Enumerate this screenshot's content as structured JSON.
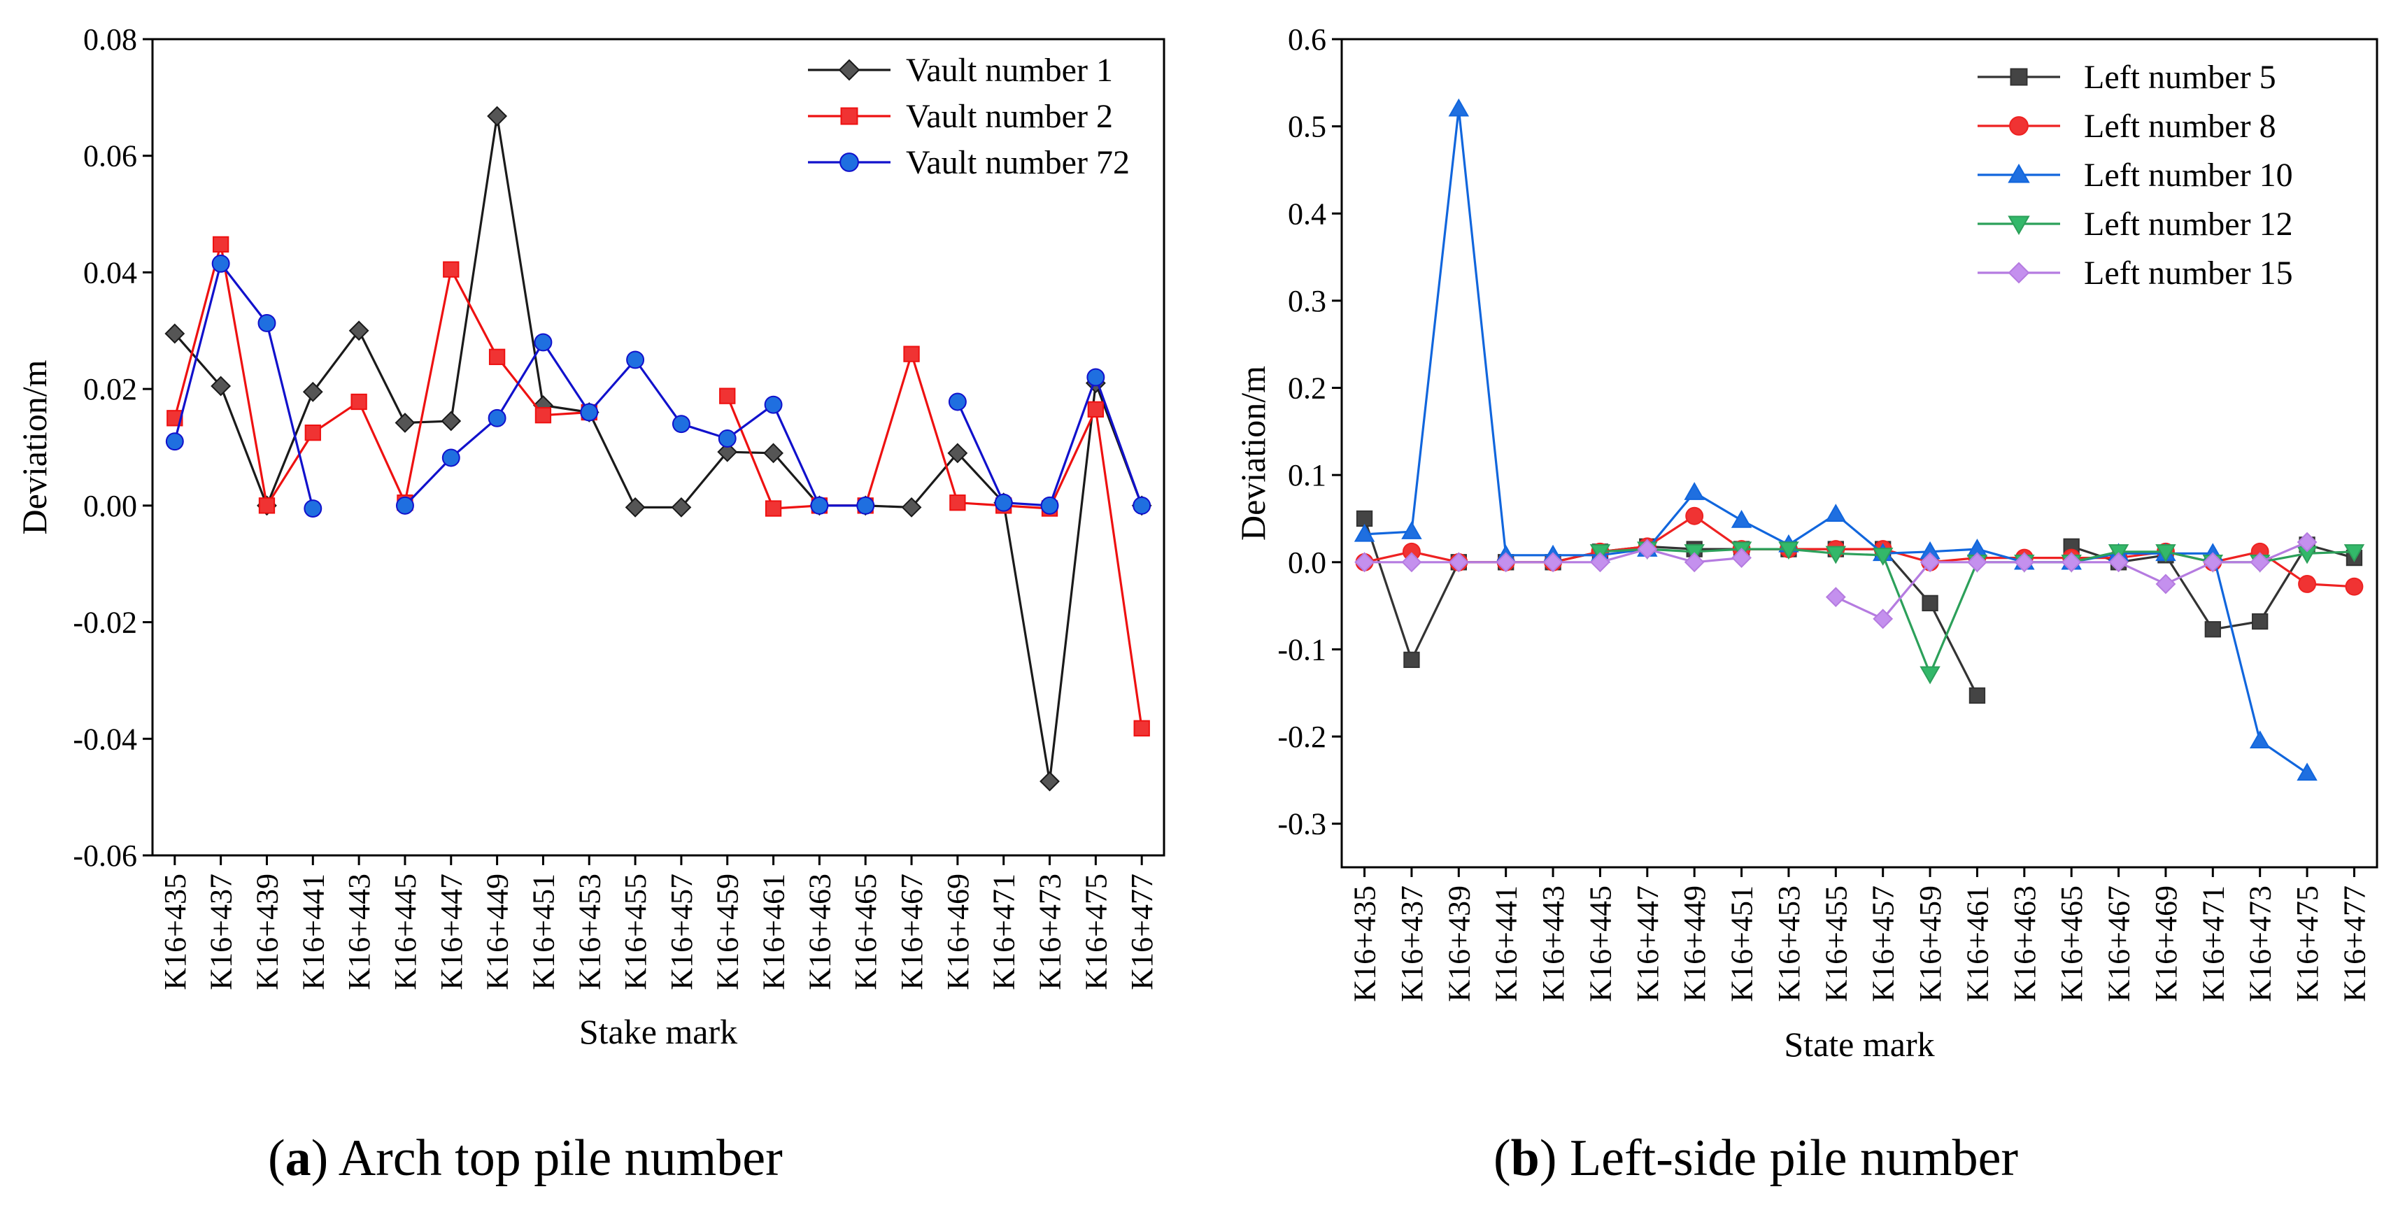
{
  "chart_data": [
    {
      "type": "line",
      "caption": {
        "letter": "a",
        "text": "Arch top pile number"
      },
      "xlabel": "Stake mark",
      "ylabel": "Deviation/m",
      "ylim": [
        -0.06,
        0.08
      ],
      "yticks": [
        "-0.06",
        "-0.04",
        "-0.02",
        "0.00",
        "0.02",
        "0.04",
        "0.06",
        "0.08"
      ],
      "categories": [
        "K16+435",
        "K16+437",
        "K16+439",
        "K16+441",
        "K16+443",
        "K16+445",
        "K16+447",
        "K16+449",
        "K16+451",
        "K16+453",
        "K16+455",
        "K16+457",
        "K16+459",
        "K16+461",
        "K16+463",
        "K16+465",
        "K16+467",
        "K16+469",
        "K16+471",
        "K16+473",
        "K16+475",
        "K16+477"
      ],
      "legend_position": "top-right",
      "series": [
        {
          "name": "Vault number 1",
          "color": "#1a1a1a",
          "fill": "#555555",
          "marker": "diamond",
          "values": [
            0.0295,
            0.0205,
            0.0,
            0.0195,
            0.03,
            0.0142,
            0.0145,
            0.0668,
            0.0172,
            0.016,
            -0.0003,
            -0.0003,
            0.0092,
            0.009,
            0.0,
            0.0,
            -0.0003,
            0.009,
            0.0005,
            -0.0473,
            0.021,
            0.0
          ]
        },
        {
          "name": "Vault number 2",
          "color": "#ee1111",
          "fill": "#f03333",
          "marker": "square",
          "values": [
            0.015,
            0.0448,
            0.0,
            0.0125,
            0.0178,
            0.0005,
            0.0405,
            0.0255,
            0.0155,
            0.016,
            null,
            null,
            0.0188,
            -0.0005,
            0.0,
            0.0,
            0.026,
            0.0005,
            0.0,
            -0.0005,
            0.0165,
            -0.0382
          ]
        },
        {
          "name": "Vault number 72",
          "color": "#1111cc",
          "fill": "#1f6fe0",
          "marker": "circle",
          "values": [
            0.011,
            0.0415,
            0.0313,
            -0.0005,
            null,
            0.0,
            0.0082,
            0.015,
            0.028,
            0.016,
            0.025,
            0.014,
            0.0115,
            0.0173,
            0.0,
            0.0,
            null,
            0.0178,
            0.0005,
            0.0,
            0.022,
            0.0
          ]
        }
      ]
    },
    {
      "type": "line",
      "caption": {
        "letter": "b",
        "text": "Left-side pile number"
      },
      "xlabel": "State mark",
      "ylabel": "Deviation/m",
      "ylim": [
        -0.35,
        0.6
      ],
      "yticks": [
        "-0.3",
        "-0.2",
        "-0.1",
        "0.0",
        "0.1",
        "0.2",
        "0.3",
        "0.4",
        "0.5",
        "0.6"
      ],
      "categories": [
        "K16+435",
        "K16+437",
        "K16+439",
        "K16+441",
        "K16+443",
        "K16+445",
        "K16+447",
        "K16+449",
        "K16+451",
        "K16+453",
        "K16+455",
        "K16+457",
        "K16+459",
        "K16+461",
        "K16+463",
        "K16+465",
        "K16+467",
        "K16+469",
        "K16+471",
        "K16+473",
        "K16+475",
        "K16+477"
      ],
      "legend_position": "top-right",
      "series": [
        {
          "name": "Left number 5",
          "color": "#333333",
          "fill": "#444444",
          "marker": "square",
          "values": [
            0.05,
            -0.112,
            0.0,
            0.0,
            0.0,
            0.012,
            0.018,
            0.015,
            0.015,
            0.015,
            0.015,
            0.015,
            -0.047,
            -0.153,
            null,
            0.018,
            0.0,
            0.008,
            -0.077,
            -0.068,
            0.02,
            0.005
          ]
        },
        {
          "name": "Left number 8",
          "color": "#ee2222",
          "fill": "#f03333",
          "marker": "circle",
          "values": [
            0.0,
            0.012,
            0.0,
            0.0,
            0.0,
            0.012,
            0.018,
            0.053,
            0.015,
            0.015,
            0.015,
            0.015,
            0.0,
            0.005,
            0.005,
            0.005,
            0.005,
            0.012,
            0.0,
            0.012,
            -0.025,
            -0.028
          ]
        },
        {
          "name": "Left number 10",
          "color": "#1166dd",
          "fill": "#1f6fe0",
          "marker": "triangle-up",
          "values": [
            0.032,
            0.035,
            0.52,
            0.008,
            0.008,
            0.008,
            0.015,
            0.08,
            0.048,
            0.02,
            0.055,
            0.01,
            0.012,
            0.015,
            0.0,
            0.0,
            0.01,
            0.01,
            0.01,
            -0.205,
            -0.242,
            null
          ]
        },
        {
          "name": "Left number 12",
          "color": "#2ca05a",
          "fill": "#33b86a",
          "marker": "triangle-down",
          "values": [
            null,
            null,
            null,
            null,
            null,
            0.012,
            0.015,
            0.012,
            0.015,
            0.015,
            0.01,
            0.008,
            -0.128,
            0.0,
            0.0,
            0.0,
            0.012,
            0.012,
            0.0,
            0.0,
            0.01,
            0.012
          ]
        },
        {
          "name": "Left number 15",
          "color": "#b57be0",
          "fill": "#c490ee",
          "marker": "diamond",
          "values": [
            0.0,
            0.0,
            0.0,
            0.0,
            0.0,
            0.0,
            0.015,
            0.0,
            0.005,
            null,
            -0.04,
            -0.065,
            0.0,
            0.0,
            0.0,
            0.0,
            0.0,
            -0.025,
            0.0,
            0.0,
            0.023,
            null
          ]
        }
      ]
    }
  ]
}
